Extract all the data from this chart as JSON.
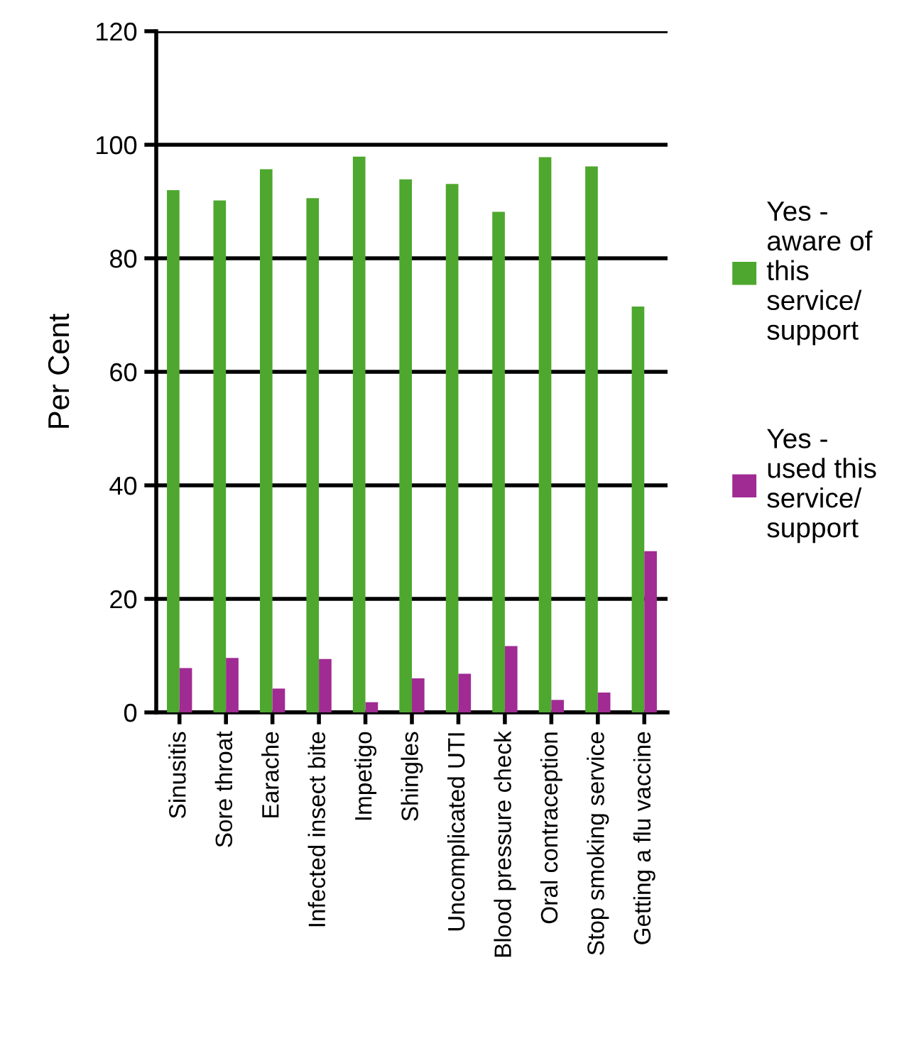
{
  "chart_data": {
    "type": "bar",
    "ylabel": "Per Cent",
    "categories": [
      "Sinusitis",
      "Sore throat",
      "Earache",
      "Infected insect bite",
      "Impetigo",
      "Shingles",
      "Uncomplicated UTI",
      "Blood pressure check",
      "Oral contraception",
      "Stop smoking service",
      "Getting a flu vaccine"
    ],
    "series": [
      {
        "name": "Yes -\naware of\nthis\nservice/\nsupport",
        "color": "#4ea72e",
        "values": [
          92.0,
          90.2,
          95.7,
          90.6,
          97.9,
          93.9,
          93.1,
          88.2,
          97.8,
          96.2,
          71.5
        ]
      },
      {
        "name": "Yes -\nused this\nservice/\nsupport",
        "color": "#a02b93",
        "values": [
          7.8,
          9.6,
          4.2,
          9.4,
          1.8,
          6.0,
          6.8,
          11.7,
          2.2,
          3.5,
          28.4
        ]
      }
    ],
    "ylim": [
      0,
      120
    ],
    "yticks": [
      0,
      20,
      40,
      60,
      80,
      100,
      120
    ],
    "grid": "y",
    "legend": "right"
  }
}
